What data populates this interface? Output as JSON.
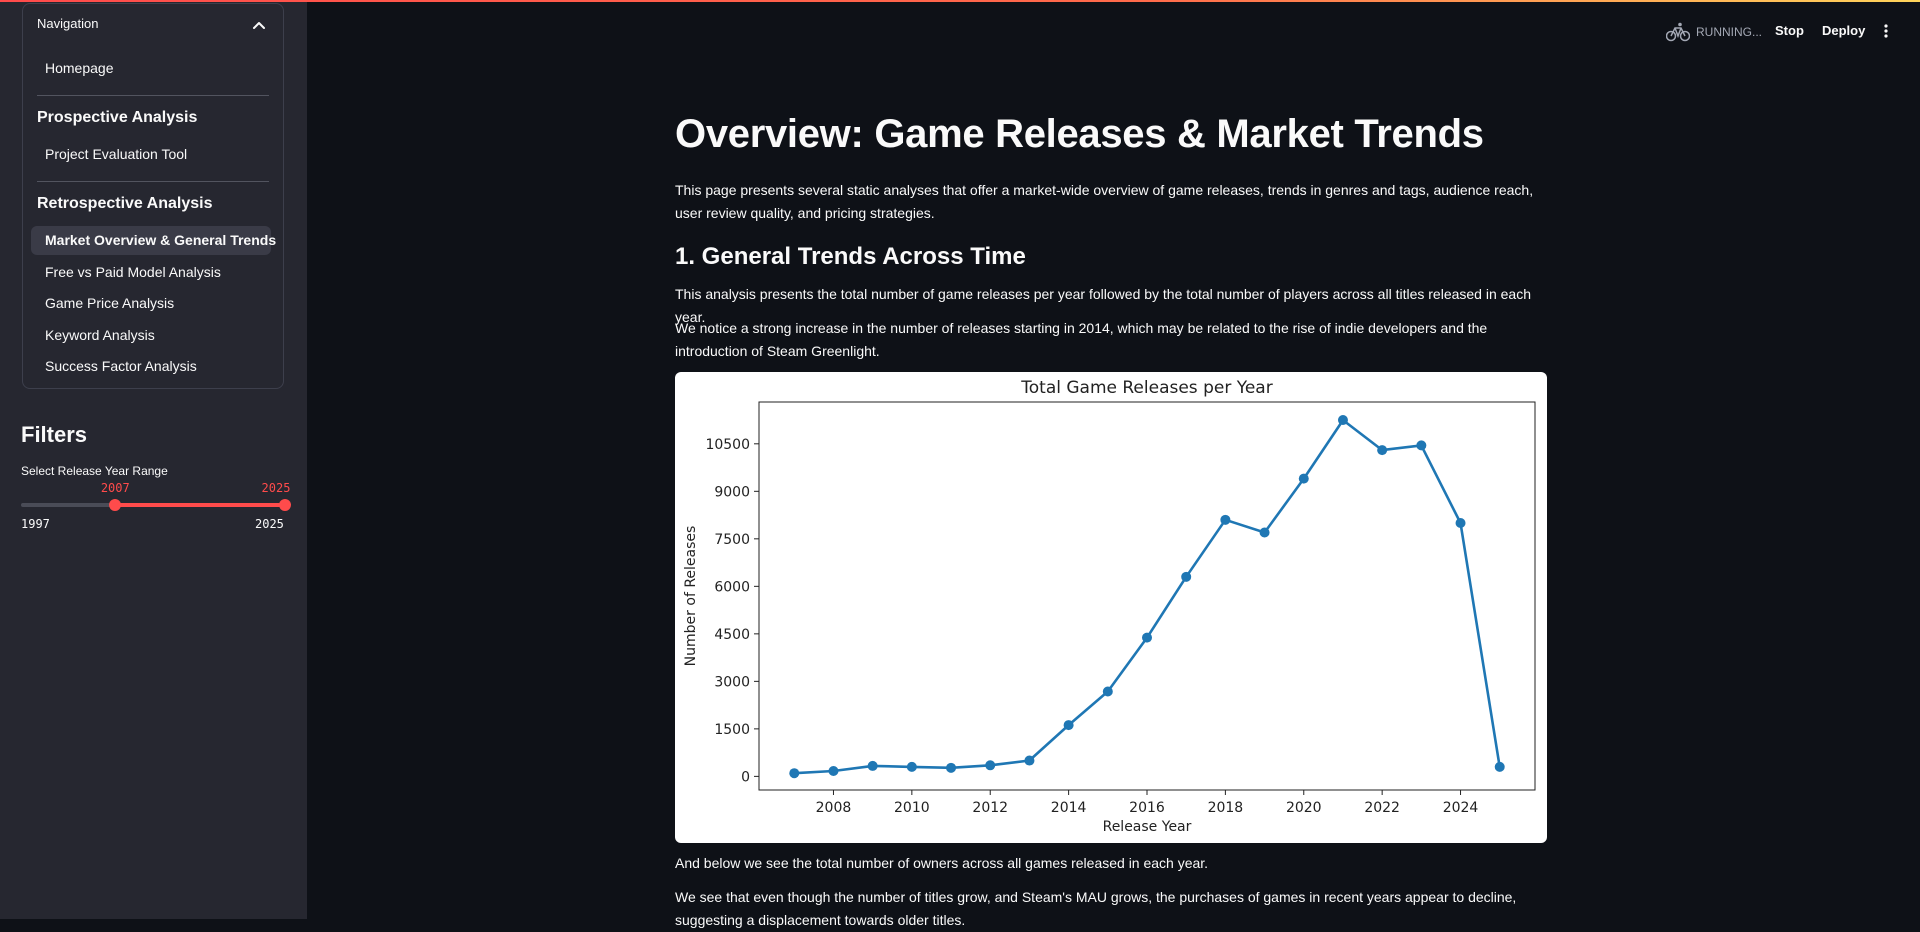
{
  "header": {
    "running_label": "RUNNING...",
    "stop_label": "Stop",
    "deploy_label": "Deploy"
  },
  "sidebar": {
    "nav_title": "Navigation",
    "home_label": "Homepage",
    "prospective": {
      "title": "Prospective Analysis",
      "items": [
        "Project Evaluation Tool"
      ]
    },
    "retrospective": {
      "title": "Retrospective Analysis",
      "items": [
        "Market Overview & General Trends",
        "Free vs Paid Model Analysis",
        "Game Price Analysis",
        "Keyword Analysis",
        "Success Factor Analysis"
      ],
      "active_index": 0
    },
    "filters": {
      "title": "Filters",
      "slider_label": "Select Release Year Range",
      "min": "1997",
      "max": "2025",
      "value_low": "2007",
      "value_high": "2025",
      "accent_color": "#ff4b4b"
    }
  },
  "main": {
    "title": "Overview: Game Releases & Market Trends",
    "intro": "This page presents several static analyses that offer a market-wide overview of game releases, trends in genres and tags, audience reach, user review quality, and pricing strategies.",
    "section1_title": "1. General Trends Across Time",
    "section1_p1": "This analysis presents the total number of game releases per year followed by the total number of players across all titles released in each year.",
    "section1_p2": "We notice a strong increase in the number of releases starting in 2014, which may be related to the rise of indie developers and the introduction of Steam Greenlight.",
    "after_chart_p1": "And below we see the total number of owners across all games released in each year.",
    "after_chart_p2": "We see that even though the number of titles grow, and Steam's MAU grows, the purchases of games in recent years appear to decline, suggesting a displacement towards older titles."
  },
  "chart_data": {
    "type": "line",
    "title": "Total Game Releases per Year",
    "xlabel": "Release Year",
    "ylabel": "Number of Releases",
    "x": [
      2007,
      2008,
      2009,
      2010,
      2011,
      2012,
      2013,
      2014,
      2015,
      2016,
      2017,
      2018,
      2019,
      2020,
      2021,
      2022,
      2023,
      2024,
      2025
    ],
    "y": [
      100,
      170,
      330,
      300,
      270,
      350,
      500,
      1620,
      2680,
      4380,
      6300,
      8100,
      7700,
      9400,
      11250,
      10300,
      10450,
      8000,
      300
    ],
    "xticks": [
      2008,
      2010,
      2012,
      2014,
      2016,
      2018,
      2020,
      2022,
      2024
    ],
    "yticks": [
      0,
      1500,
      3000,
      4500,
      6000,
      7500,
      9000,
      10500
    ],
    "xlim": [
      2006.1,
      2025.9
    ],
    "ylim": [
      -430,
      11820
    ],
    "line_color": "#1f77b4",
    "grid": false,
    "legend": "none"
  }
}
